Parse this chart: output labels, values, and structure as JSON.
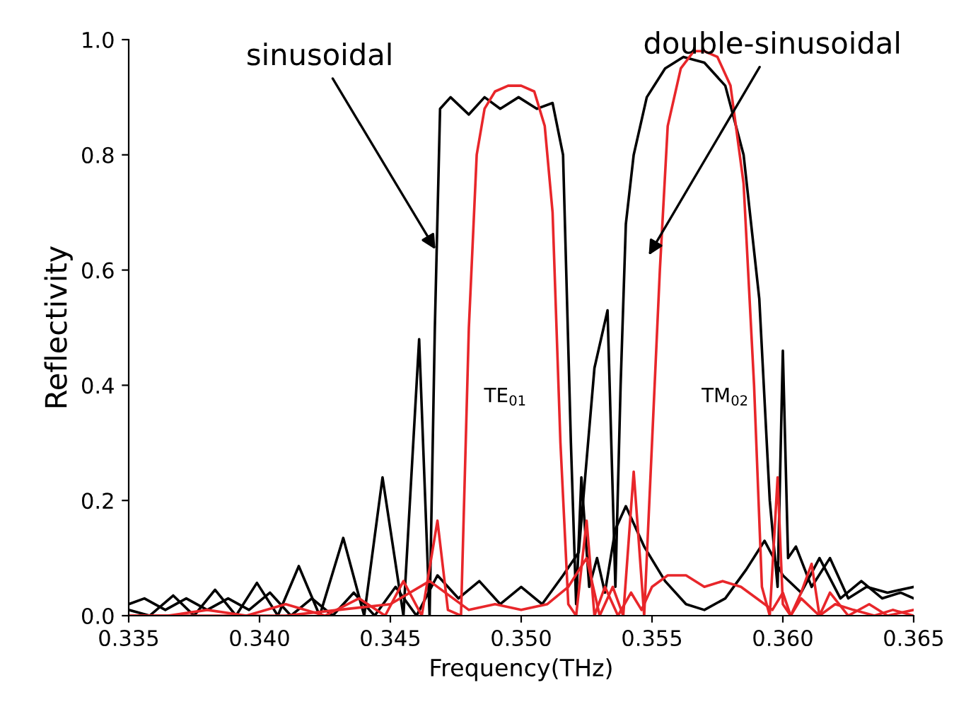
{
  "chart_data": {
    "type": "line",
    "xlabel": "Frequency(THz)",
    "ylabel": "Reflectivity",
    "xlim": [
      0.335,
      0.365
    ],
    "ylim": [
      0.0,
      1.0
    ],
    "xticks": [
      {
        "value": 0.335,
        "label": "0.335"
      },
      {
        "value": 0.34,
        "label": "0.340"
      },
      {
        "value": 0.345,
        "label": "0.345"
      },
      {
        "value": 0.35,
        "label": "0.350"
      },
      {
        "value": 0.355,
        "label": "0.355"
      },
      {
        "value": 0.36,
        "label": "0.360"
      },
      {
        "value": 0.365,
        "label": "0.365"
      }
    ],
    "yticks": [
      {
        "value": 0.0,
        "label": "0.0"
      },
      {
        "value": 0.2,
        "label": "0.2"
      },
      {
        "value": 0.4,
        "label": "0.4"
      },
      {
        "value": 0.6,
        "label": "0.6"
      },
      {
        "value": 0.8,
        "label": "0.8"
      },
      {
        "value": 1.0,
        "label": "1.0"
      }
    ],
    "grid": false,
    "legend": false,
    "marker": "none",
    "line_style": "solid",
    "series": [
      {
        "color": "#000000",
        "x": [
          0.335,
          0.3358,
          0.3367,
          0.3375,
          0.3383,
          0.3391,
          0.3399,
          0.3407,
          0.3415,
          0.3423,
          0.3432,
          0.344,
          0.3447,
          0.3455,
          0.3461,
          0.3465,
          0.3467,
          0.3469,
          0.3473,
          0.348,
          0.3486,
          0.3492,
          0.3499,
          0.3506,
          0.3512,
          0.3516,
          0.3519,
          0.3521,
          0.3523,
          0.3526,
          0.3529,
          0.3532,
          0.3536,
          0.354,
          0.3547,
          0.3555,
          0.3563,
          0.357,
          0.3578,
          0.3586,
          0.3593,
          0.36,
          0.3607,
          0.3614,
          0.3622,
          0.363,
          0.3638,
          0.3645,
          0.365
        ],
        "values": [
          0.01,
          0.0,
          0.035,
          0.0,
          0.045,
          0.0,
          0.057,
          0.0,
          0.086,
          0.0,
          0.135,
          0.0,
          0.24,
          0.0,
          0.48,
          0.0,
          0.5,
          0.88,
          0.9,
          0.87,
          0.9,
          0.88,
          0.9,
          0.88,
          0.89,
          0.8,
          0.3,
          0.02,
          0.24,
          0.05,
          0.1,
          0.04,
          0.15,
          0.19,
          0.12,
          0.06,
          0.02,
          0.01,
          0.03,
          0.08,
          0.13,
          0.07,
          0.04,
          0.1,
          0.03,
          0.06,
          0.03,
          0.04,
          0.03
        ]
      },
      {
        "color": "#000000",
        "x": [
          0.335,
          0.3356,
          0.3364,
          0.3372,
          0.338,
          0.3388,
          0.3396,
          0.3404,
          0.3412,
          0.342,
          0.3428,
          0.3436,
          0.3444,
          0.3452,
          0.346,
          0.3468,
          0.3476,
          0.3484,
          0.3492,
          0.35,
          0.3508,
          0.3516,
          0.3522,
          0.3528,
          0.3533,
          0.3536,
          0.3538,
          0.354,
          0.3543,
          0.3548,
          0.3555,
          0.3562,
          0.357,
          0.3578,
          0.3585,
          0.3591,
          0.3595,
          0.3598,
          0.36,
          0.3602,
          0.3605,
          0.3611,
          0.3618,
          0.3625,
          0.3632,
          0.364,
          0.365
        ],
        "values": [
          0.02,
          0.03,
          0.01,
          0.03,
          0.01,
          0.03,
          0.01,
          0.04,
          0.0,
          0.03,
          0.0,
          0.04,
          0.0,
          0.05,
          0.0,
          0.07,
          0.03,
          0.06,
          0.02,
          0.05,
          0.02,
          0.07,
          0.11,
          0.43,
          0.53,
          0.05,
          0.4,
          0.68,
          0.8,
          0.9,
          0.95,
          0.97,
          0.96,
          0.92,
          0.8,
          0.55,
          0.2,
          0.05,
          0.46,
          0.1,
          0.12,
          0.05,
          0.1,
          0.03,
          0.05,
          0.04,
          0.05
        ]
      },
      {
        "color": "#e8262a",
        "x": [
          0.335,
          0.3365,
          0.338,
          0.3395,
          0.341,
          0.3425,
          0.3438,
          0.3448,
          0.3455,
          0.3462,
          0.3468,
          0.3472,
          0.3477,
          0.348,
          0.3483,
          0.3486,
          0.349,
          0.3495,
          0.35,
          0.3505,
          0.3509,
          0.3512,
          0.3515,
          0.3518,
          0.3521,
          0.3525,
          0.3528,
          0.3532,
          0.3537,
          0.3542,
          0.3546,
          0.355,
          0.3556,
          0.3563,
          0.357,
          0.3577,
          0.3584,
          0.359,
          0.3596,
          0.36,
          0.3603,
          0.3607,
          0.3614,
          0.362,
          0.3627,
          0.3635,
          0.3642,
          0.365
        ],
        "values": [
          0.0,
          0.0,
          0.01,
          0.0,
          0.02,
          0.0,
          0.03,
          0.0,
          0.06,
          0.0,
          0.165,
          0.01,
          0.0,
          0.5,
          0.8,
          0.88,
          0.91,
          0.92,
          0.92,
          0.91,
          0.85,
          0.7,
          0.3,
          0.02,
          0.0,
          0.165,
          0.0,
          0.05,
          0.0,
          0.04,
          0.01,
          0.05,
          0.07,
          0.07,
          0.05,
          0.06,
          0.05,
          0.03,
          0.01,
          0.04,
          0.0,
          0.03,
          0.0,
          0.02,
          0.01,
          0.0,
          0.01,
          0.0
        ]
      },
      {
        "color": "#e8262a",
        "x": [
          0.335,
          0.337,
          0.339,
          0.341,
          0.343,
          0.345,
          0.3465,
          0.348,
          0.349,
          0.35,
          0.351,
          0.3518,
          0.3525,
          0.353,
          0.3535,
          0.3539,
          0.3543,
          0.3547,
          0.355,
          0.3553,
          0.3556,
          0.3561,
          0.3566,
          0.357,
          0.3575,
          0.358,
          0.3585,
          0.3589,
          0.3592,
          0.3595,
          0.3598,
          0.36,
          0.3603,
          0.3607,
          0.3611,
          0.3614,
          0.3618,
          0.3625,
          0.3633,
          0.364,
          0.365
        ],
        "values": [
          0.0,
          0.0,
          0.0,
          0.0,
          0.01,
          0.02,
          0.06,
          0.01,
          0.02,
          0.01,
          0.02,
          0.05,
          0.1,
          0.0,
          0.05,
          0.0,
          0.25,
          0.0,
          0.3,
          0.6,
          0.85,
          0.95,
          0.98,
          0.98,
          0.97,
          0.92,
          0.75,
          0.4,
          0.05,
          0.0,
          0.24,
          0.02,
          0.0,
          0.04,
          0.09,
          0.0,
          0.04,
          0.0,
          0.02,
          0.0,
          0.01
        ]
      }
    ],
    "annotations": [
      {
        "text": "sinusoidal",
        "x": 0.3468,
        "y": 0.63
      },
      "double-sinusoidal",
      "TE$_{01}$",
      "TM$_{02}$"
    ]
  }
}
